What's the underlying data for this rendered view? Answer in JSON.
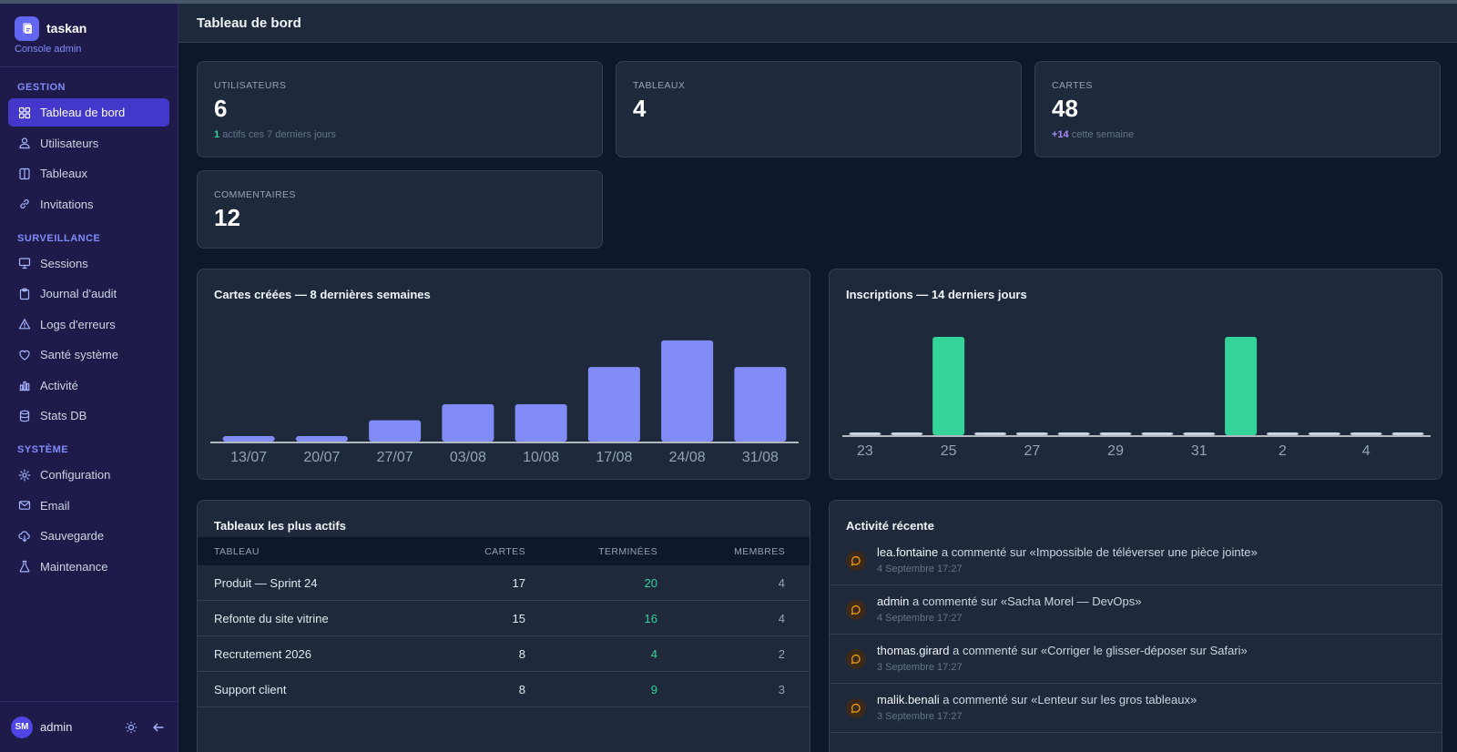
{
  "app": {
    "name": "taskan",
    "subtitle": "Console admin"
  },
  "sidebar": {
    "sections": [
      {
        "title": "GESTION",
        "items": [
          {
            "label": "Tableau de bord",
            "icon": "dashboard-icon",
            "active": true
          },
          {
            "label": "Utilisateurs",
            "icon": "users-icon"
          },
          {
            "label": "Tableaux",
            "icon": "columns-icon"
          },
          {
            "label": "Invitations",
            "icon": "link-icon"
          }
        ]
      },
      {
        "title": "SURVEILLANCE",
        "items": [
          {
            "label": "Sessions",
            "icon": "monitor-icon"
          },
          {
            "label": "Journal d'audit",
            "icon": "clipboard-icon"
          },
          {
            "label": "Logs d'erreurs",
            "icon": "warning-icon"
          },
          {
            "label": "Santé système",
            "icon": "heart-icon"
          },
          {
            "label": "Activité",
            "icon": "bar-chart-icon"
          },
          {
            "label": "Stats DB",
            "icon": "database-icon"
          }
        ]
      },
      {
        "title": "SYSTÈME",
        "items": [
          {
            "label": "Configuration",
            "icon": "gear-icon"
          },
          {
            "label": "Email",
            "icon": "mail-icon"
          },
          {
            "label": "Sauvegarde",
            "icon": "cloud-download-icon"
          },
          {
            "label": "Maintenance",
            "icon": "flask-icon"
          }
        ]
      }
    ],
    "footer": {
      "initials": "SM",
      "user": "admin"
    }
  },
  "header": {
    "title": "Tableau de bord"
  },
  "stats": {
    "users": {
      "label": "UTILISATEURS",
      "value": "6",
      "sub_highlight": "1",
      "sub_text": "actifs ces 7 derniers jours"
    },
    "boards": {
      "label": "TABLEAUX",
      "value": "4"
    },
    "cards": {
      "label": "CARTES",
      "value": "48",
      "sub_highlight": "+14",
      "sub_text": "cette semaine"
    },
    "comments": {
      "label": "COMMENTAIRES",
      "value": "12"
    }
  },
  "colors": {
    "bar_primary": "#818cf8",
    "bar_signup": "#34d399",
    "accent": "#4338ca"
  },
  "chart_data": [
    {
      "type": "bar",
      "title": "Cartes créées — 8 dernières semaines",
      "categories": [
        "13/07",
        "20/07",
        "27/07",
        "03/08",
        "10/08",
        "17/08",
        "24/08",
        "31/08"
      ],
      "values": [
        1,
        1,
        4,
        7,
        7,
        14,
        19,
        14
      ],
      "ylim": [
        0,
        20
      ]
    },
    {
      "type": "bar",
      "title": "Inscriptions — 14 derniers jours",
      "categories": [
        "23",
        "24",
        "25",
        "26",
        "27",
        "28",
        "29",
        "30",
        "31",
        "1",
        "2",
        "3",
        "4",
        "5"
      ],
      "tick_labels": [
        "23",
        "",
        "25",
        "",
        "27",
        "",
        "29",
        "",
        "31",
        "",
        "2",
        "",
        "4",
        ""
      ],
      "values": [
        0,
        0,
        1,
        0,
        0,
        0,
        0,
        0,
        0,
        1,
        0,
        0,
        0,
        0
      ],
      "ylim": [
        0,
        1
      ]
    }
  ],
  "top_boards": {
    "title": "Tableaux les plus actifs",
    "columns": [
      "TABLEAU",
      "CARTES",
      "TERMINÉES",
      "MEMBRES"
    ],
    "rows": [
      {
        "name": "Produit — Sprint 24",
        "cards": "17",
        "done": "20",
        "members": "4"
      },
      {
        "name": "Refonte du site vitrine",
        "cards": "15",
        "done": "16",
        "members": "4"
      },
      {
        "name": "Recrutement 2026",
        "cards": "8",
        "done": "4",
        "members": "2"
      },
      {
        "name": "Support client",
        "cards": "8",
        "done": "9",
        "members": "3"
      }
    ]
  },
  "activity": {
    "title": "Activité récente",
    "items": [
      {
        "user": "lea.fontaine",
        "text": " a commenté sur «Impossible de téléverser une pièce jointe»",
        "date": "4 Septembre 17:27"
      },
      {
        "user": "admin",
        "text": " a commenté sur «Sacha Morel — DevOps»",
        "date": "4 Septembre 17:27"
      },
      {
        "user": "thomas.girard",
        "text": " a commenté sur «Corriger le glisser-déposer sur Safari»",
        "date": "3 Septembre 17:27"
      },
      {
        "user": "malik.benali",
        "text": " a commenté sur «Lenteur sur les gros tableaux»",
        "date": "3 Septembre 17:27"
      }
    ]
  }
}
